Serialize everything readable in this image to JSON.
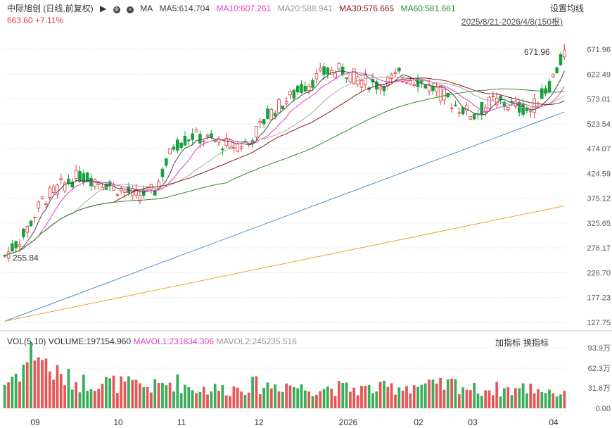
{
  "header": {
    "title": "中际旭创 (日线,前复权)",
    "ma_label": "MA",
    "ma5": "MA5:614.704",
    "ma10": "MA10:607.261",
    "ma20": "MA20:588.941",
    "ma30": "MA30:576.665",
    "ma60": "MA60:581.661",
    "settings": "设置均线",
    "price_change": "663.60 +7.11%",
    "range": "2025/8/21-2026/4/8(150根)"
  },
  "volume_header": {
    "title": "VOL(5,10)",
    "volume": "VOLUME:197154.960",
    "mavol1": "MAVOL1:231834.306",
    "mavol2": "MAVOL2:245235.516",
    "add_indicator": "加指标",
    "switch_indicator": "换指标"
  },
  "colors": {
    "up": "#e3373a",
    "down": "#15a03d",
    "ma5": "#444444",
    "ma10": "#e040c0",
    "ma20": "#aaaaaa",
    "ma30": "#8b1a1a",
    "ma60": "#2f8a2f",
    "ma120": "#4a8fd8",
    "ma250": "#f0a030"
  },
  "chart_data": {
    "type": "candlestick",
    "price_axis": {
      "ticks": [
        "671.96",
        "622.49",
        "573.01",
        "523.54",
        "474.07",
        "424.59",
        "375.12",
        "325.65",
        "276.17",
        "226.70",
        "177.23",
        "127.75"
      ],
      "range": [
        127.75,
        671.96
      ]
    },
    "volume_axis": {
      "ticks": [
        "93.9万",
        "62.3万",
        "31.6万",
        "0.00"
      ],
      "range": [
        0,
        939000
      ]
    },
    "x_labels": [
      "09",
      "10",
      "11",
      "12",
      "2026",
      "02",
      "03",
      "04"
    ],
    "annotations": {
      "high": "671.96",
      "low": "255.84"
    },
    "candle_count": 150,
    "price_waypoints": [
      [
        0,
        260
      ],
      [
        5,
        300
      ],
      [
        10,
        370
      ],
      [
        15,
        400
      ],
      [
        20,
        420
      ],
      [
        25,
        410
      ],
      [
        30,
        395
      ],
      [
        35,
        380
      ],
      [
        40,
        390
      ],
      [
        45,
        480
      ],
      [
        50,
        500
      ],
      [
        55,
        490
      ],
      [
        60,
        480
      ],
      [
        65,
        485
      ],
      [
        70,
        540
      ],
      [
        75,
        570
      ],
      [
        80,
        600
      ],
      [
        85,
        625
      ],
      [
        90,
        630
      ],
      [
        95,
        610
      ],
      [
        100,
        600
      ],
      [
        105,
        620
      ],
      [
        110,
        610
      ],
      [
        115,
        590
      ],
      [
        120,
        560
      ],
      [
        125,
        540
      ],
      [
        130,
        570
      ],
      [
        135,
        560
      ],
      [
        140,
        550
      ],
      [
        145,
        600
      ],
      [
        149,
        663.6
      ]
    ],
    "volume_waypoints": [
      [
        0,
        380000
      ],
      [
        5,
        650000
      ],
      [
        8,
        939000
      ],
      [
        10,
        780000
      ],
      [
        12,
        600000
      ],
      [
        15,
        480000
      ],
      [
        20,
        400000
      ],
      [
        25,
        420000
      ],
      [
        30,
        380000
      ],
      [
        35,
        350000
      ],
      [
        40,
        330000
      ],
      [
        45,
        420000
      ],
      [
        50,
        310000
      ],
      [
        55,
        300000
      ],
      [
        60,
        300000
      ],
      [
        65,
        360000
      ],
      [
        70,
        350000
      ],
      [
        75,
        380000
      ],
      [
        80,
        300000
      ],
      [
        85,
        320000
      ],
      [
        90,
        310000
      ],
      [
        95,
        300000
      ],
      [
        100,
        300000
      ],
      [
        105,
        340000
      ],
      [
        110,
        360000
      ],
      [
        115,
        330000
      ],
      [
        120,
        380000
      ],
      [
        125,
        290000
      ],
      [
        130,
        300000
      ],
      [
        135,
        290000
      ],
      [
        140,
        320000
      ],
      [
        145,
        280000
      ],
      [
        149,
        197155
      ]
    ],
    "ma_lines": [
      {
        "name": "MA5",
        "key": "ma5"
      },
      {
        "name": "MA10",
        "key": "ma10"
      },
      {
        "name": "MA20",
        "key": "ma20"
      },
      {
        "name": "MA30",
        "key": "ma30"
      },
      {
        "name": "MA60",
        "key": "ma60"
      }
    ],
    "ma_long": {
      "ma120": [
        [
          0,
          130
        ],
        [
          149,
          547
        ]
      ],
      "ma250": [
        [
          0,
          130
        ],
        [
          149,
          360
        ]
      ]
    }
  }
}
